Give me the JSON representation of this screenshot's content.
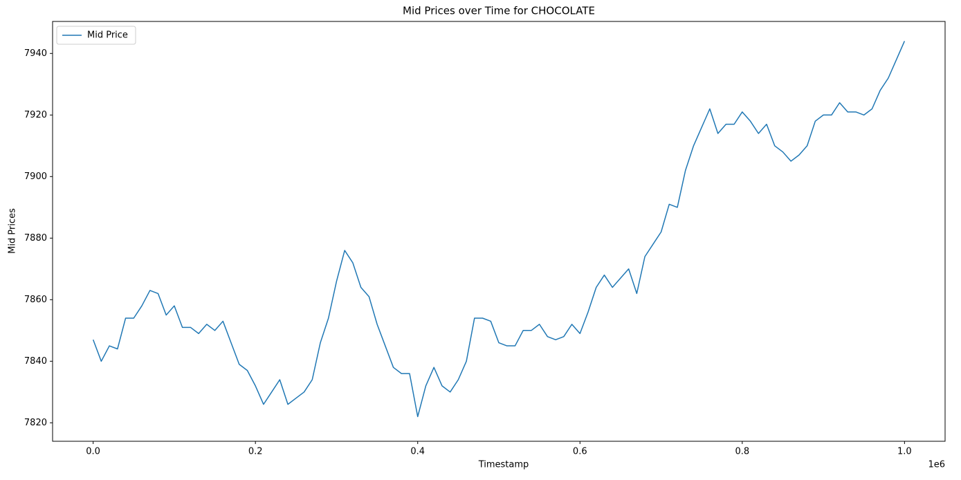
{
  "chart_data": {
    "type": "line",
    "title": "Mid Prices over Time for CHOCOLATE",
    "x_label": "Timestamp",
    "y_label": "Mid Prices",
    "x_offset_label": "1e6",
    "x": [
      0,
      10000,
      20000,
      30000,
      40000,
      50000,
      60000,
      70000,
      80000,
      90000,
      100000,
      110000,
      120000,
      130000,
      140000,
      150000,
      160000,
      170000,
      180000,
      190000,
      200000,
      210000,
      220000,
      230000,
      240000,
      250000,
      260000,
      270000,
      280000,
      290000,
      300000,
      310000,
      320000,
      330000,
      340000,
      350000,
      360000,
      370000,
      380000,
      390000,
      400000,
      410000,
      420000,
      430000,
      440000,
      450000,
      460000,
      470000,
      480000,
      490000,
      500000,
      510000,
      520000,
      530000,
      540000,
      550000,
      560000,
      570000,
      580000,
      590000,
      600000,
      610000,
      620000,
      630000,
      640000,
      650000,
      660000,
      670000,
      680000,
      690000,
      700000,
      710000,
      720000,
      730000,
      740000,
      750000,
      760000,
      770000,
      780000,
      790000,
      800000,
      810000,
      820000,
      830000,
      840000,
      850000,
      860000,
      870000,
      880000,
      890000,
      900000,
      910000,
      920000,
      930000,
      940000,
      950000,
      960000,
      970000,
      980000,
      990000,
      1000000
    ],
    "series": [
      {
        "name": "Mid Price",
        "color": "#1f77b4",
        "values": [
          7847,
          7840,
          7845,
          7844,
          7854,
          7854,
          7858,
          7863,
          7862,
          7855,
          7858,
          7851,
          7851,
          7849,
          7852,
          7850,
          7853,
          7846,
          7839,
          7837,
          7832,
          7826,
          7830,
          7834,
          7826,
          7828,
          7830,
          7834,
          7846,
          7854,
          7866,
          7876,
          7872,
          7864,
          7861,
          7852,
          7845,
          7838,
          7836,
          7836,
          7822,
          7832,
          7838,
          7832,
          7830,
          7834,
          7840,
          7854,
          7854,
          7853,
          7846,
          7845,
          7845,
          7850,
          7850,
          7852,
          7848,
          7847,
          7848,
          7852,
          7849,
          7856,
          7864,
          7868,
          7864,
          7867,
          7870,
          7862,
          7874,
          7878,
          7882,
          7891,
          7890,
          7902,
          7910,
          7916,
          7922,
          7914,
          7917,
          7917,
          7921,
          7918,
          7914,
          7917,
          7910,
          7908,
          7905,
          7907,
          7910,
          7918,
          7920,
          7920,
          7924,
          7921,
          7921,
          7920,
          7922,
          7928,
          7932,
          7938,
          7944
        ]
      }
    ],
    "xlim": [
      -50000,
      1050000
    ],
    "xticks": [
      {
        "value": 0,
        "label": "0.0"
      },
      {
        "value": 200000,
        "label": "0.2"
      },
      {
        "value": 400000,
        "label": "0.4"
      },
      {
        "value": 600000,
        "label": "0.6"
      },
      {
        "value": 800000,
        "label": "0.8"
      },
      {
        "value": 1000000,
        "label": "1.0"
      }
    ],
    "ylim": [
      7814,
      7950.4
    ],
    "yticks": [
      7820,
      7840,
      7860,
      7880,
      7900,
      7920,
      7940
    ],
    "grid": false,
    "legend": "upper-left"
  }
}
